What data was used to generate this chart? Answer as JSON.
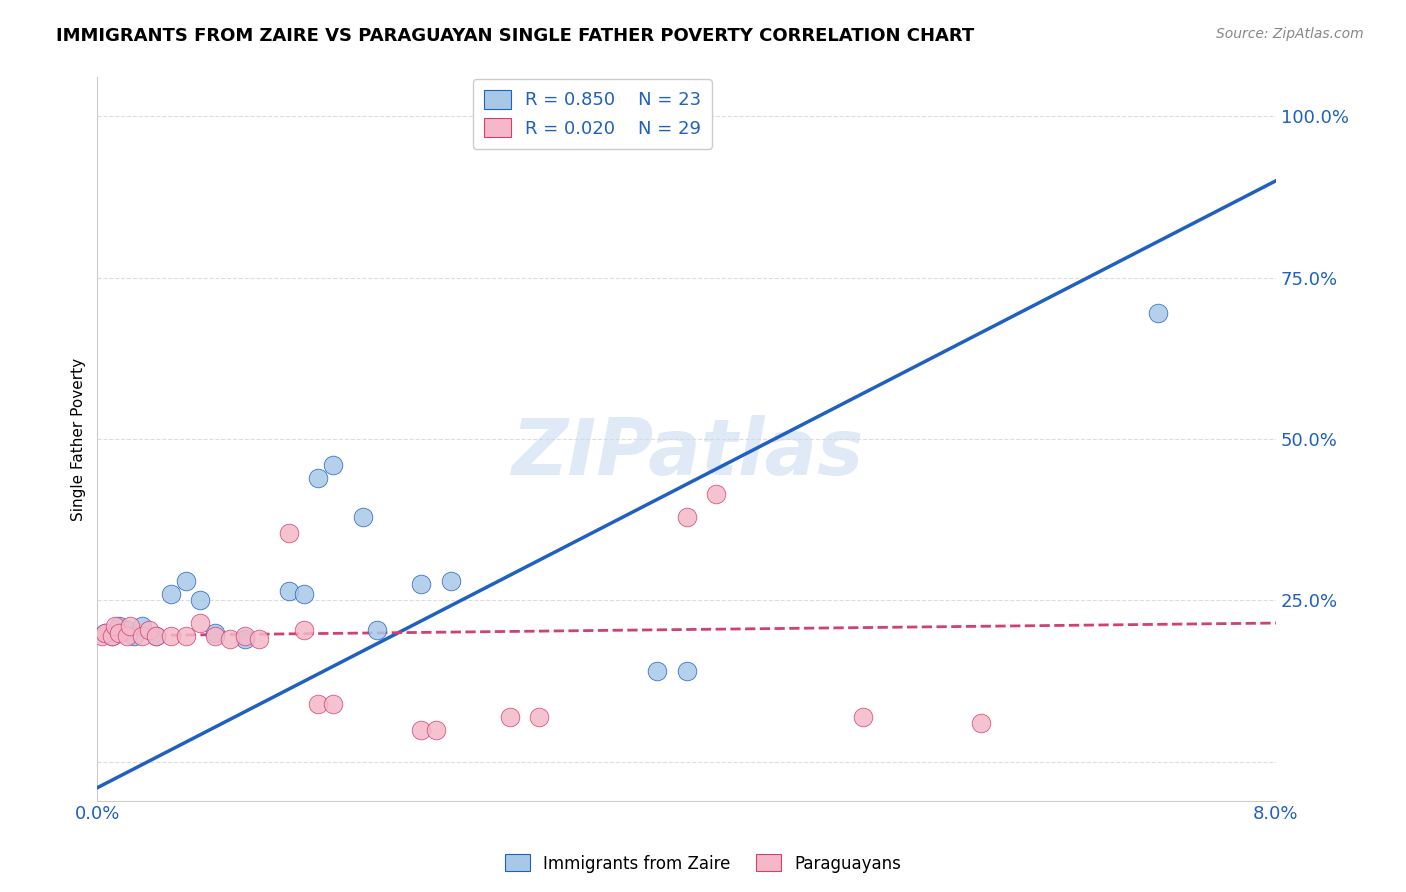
{
  "title": "IMMIGRANTS FROM ZAIRE VS PARAGUAYAN SINGLE FATHER POVERTY CORRELATION CHART",
  "source": "Source: ZipAtlas.com",
  "ylabel": "Single Father Poverty",
  "yticks": [
    0.0,
    0.25,
    0.5,
    0.75,
    1.0
  ],
  "ytick_labels": [
    "",
    "25.0%",
    "50.0%",
    "75.0%",
    "100.0%"
  ],
  "xlim": [
    0.0,
    0.08
  ],
  "ylim": [
    -0.06,
    1.06
  ],
  "legend_r1": "R = 0.850",
  "legend_n1": "N = 23",
  "legend_r2": "R = 0.020",
  "legend_n2": "N = 29",
  "color_blue": "#a8c8e8",
  "color_pink": "#f4b8c8",
  "line_blue": "#2060c0",
  "line_pink": "#d04070",
  "watermark": "ZIPatlas",
  "blue_points": [
    [
      0.0005,
      0.2
    ],
    [
      0.001,
      0.195
    ],
    [
      0.0015,
      0.21
    ],
    [
      0.002,
      0.205
    ],
    [
      0.0025,
      0.195
    ],
    [
      0.003,
      0.21
    ],
    [
      0.004,
      0.195
    ],
    [
      0.005,
      0.26
    ],
    [
      0.006,
      0.28
    ],
    [
      0.007,
      0.25
    ],
    [
      0.008,
      0.2
    ],
    [
      0.01,
      0.19
    ],
    [
      0.013,
      0.265
    ],
    [
      0.014,
      0.26
    ],
    [
      0.015,
      0.44
    ],
    [
      0.016,
      0.46
    ],
    [
      0.018,
      0.38
    ],
    [
      0.019,
      0.205
    ],
    [
      0.022,
      0.275
    ],
    [
      0.024,
      0.28
    ],
    [
      0.038,
      0.14
    ],
    [
      0.04,
      0.14
    ],
    [
      0.072,
      0.695
    ]
  ],
  "pink_points": [
    [
      0.0003,
      0.195
    ],
    [
      0.0005,
      0.2
    ],
    [
      0.001,
      0.195
    ],
    [
      0.0012,
      0.21
    ],
    [
      0.0015,
      0.2
    ],
    [
      0.002,
      0.195
    ],
    [
      0.0022,
      0.21
    ],
    [
      0.003,
      0.195
    ],
    [
      0.0035,
      0.205
    ],
    [
      0.004,
      0.195
    ],
    [
      0.005,
      0.195
    ],
    [
      0.006,
      0.195
    ],
    [
      0.007,
      0.215
    ],
    [
      0.008,
      0.195
    ],
    [
      0.009,
      0.19
    ],
    [
      0.01,
      0.195
    ],
    [
      0.011,
      0.19
    ],
    [
      0.013,
      0.355
    ],
    [
      0.014,
      0.205
    ],
    [
      0.015,
      0.09
    ],
    [
      0.016,
      0.09
    ],
    [
      0.022,
      0.05
    ],
    [
      0.023,
      0.05
    ],
    [
      0.028,
      0.07
    ],
    [
      0.03,
      0.07
    ],
    [
      0.04,
      0.38
    ],
    [
      0.042,
      0.415
    ],
    [
      0.052,
      0.07
    ],
    [
      0.06,
      0.06
    ]
  ],
  "blue_line_x": [
    0.0,
    0.08
  ],
  "blue_line_y": [
    -0.04,
    0.9
  ],
  "pink_line_x": [
    0.0,
    0.08
  ],
  "pink_line_y": [
    0.195,
    0.215
  ],
  "grid_color": "#dddddd",
  "spine_color": "#cccccc",
  "tick_color": "#2060c0",
  "title_fontsize": 13,
  "source_fontsize": 10,
  "tick_fontsize": 13,
  "ylabel_fontsize": 11
}
